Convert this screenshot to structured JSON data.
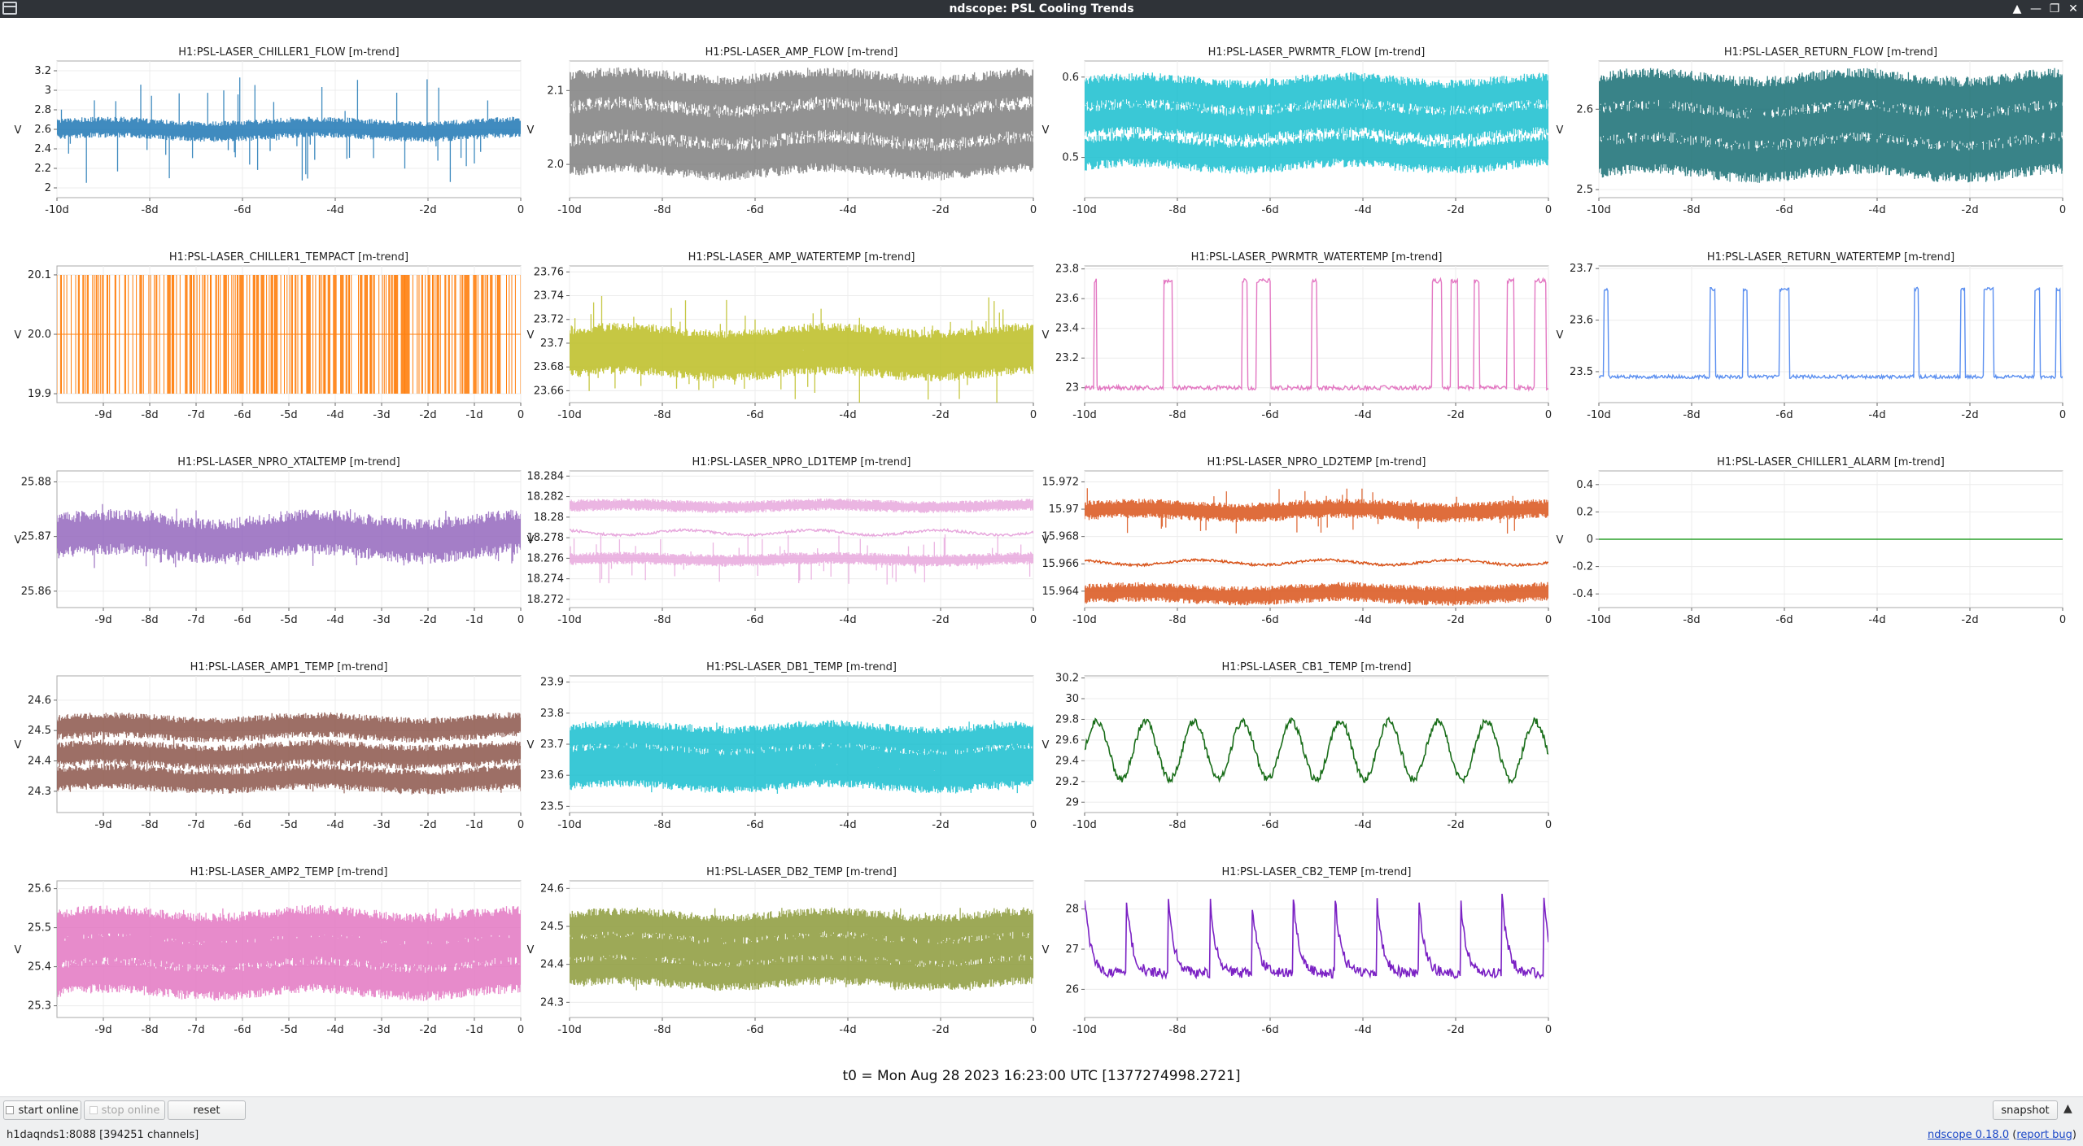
{
  "window": {
    "title": "ndscope: PSL Cooling Trends",
    "controls": [
      "▲",
      "—",
      "❐",
      "✕"
    ]
  },
  "y_axis_label": "V",
  "t0_label": "t0 = Mon Aug 28 2023 16:23:00 UTC [1377274998.2721]",
  "toolbar": {
    "start_online": "start online",
    "stop_online": "stop online",
    "reset": "reset",
    "snapshot": "snapshot",
    "expand_icon": "triangle-up"
  },
  "status": {
    "connection": "h1daqnds1:8088  [394251 channels]",
    "version_link": "ndscope 0.18.0",
    "report_bug_link": "report bug",
    "open_paren": " (",
    "close_paren": ")"
  },
  "chart_data": [
    {
      "type": "line",
      "title": "H1:PSL-LASER_CHILLER1_FLOW [m-trend]",
      "color": "#1f77b4",
      "ylim": [
        1.9,
        3.3
      ],
      "yticks": [
        "3.2",
        "3",
        "2.8",
        "2.6",
        "2.4",
        "2.2",
        "2"
      ],
      "ytick_values": [
        3.2,
        3.0,
        2.8,
        2.6,
        2.4,
        2.2,
        2.0
      ],
      "xlim": [
        -10,
        0
      ],
      "xticks": [
        "-10d",
        "-8d",
        "-6d",
        "-4d",
        "-2d",
        "0"
      ],
      "xtick_values": [
        -10,
        -8,
        -6,
        -4,
        -2,
        0
      ],
      "series": [
        {
          "kind": "band",
          "values": [
            2.6
          ],
          "spread": 0.09,
          "spikes": 0.55
        }
      ]
    },
    {
      "type": "line",
      "title": "H1:PSL-LASER_AMP_FLOW [m-trend]",
      "color": "#7f7f7f",
      "ylim": [
        1.955,
        2.14
      ],
      "yticks": [
        "2.1",
        "2.0"
      ],
      "ytick_values": [
        2.1,
        2.0
      ],
      "xlim": [
        -10,
        0
      ],
      "xticks": [
        "-10d",
        "-8d",
        "-6d",
        "-4d",
        "-2d",
        "0"
      ],
      "xtick_values": [
        -10,
        -8,
        -6,
        -4,
        -2,
        0
      ],
      "series": [
        {
          "kind": "band",
          "values": [
            2.1,
            2.055,
            2.01
          ],
          "spread": 0.022,
          "spikes": 0.02
        }
      ]
    },
    {
      "type": "line",
      "title": "H1:PSL-LASER_PWRMTR_FLOW [m-trend]",
      "color": "#17becf",
      "ylim": [
        0.45,
        0.62
      ],
      "yticks": [
        "0.6",
        "0.5"
      ],
      "ytick_values": [
        0.6,
        0.5
      ],
      "xlim": [
        -10,
        0
      ],
      "xticks": [
        "-10d",
        "-8d",
        "-6d",
        "-4d",
        "-2d",
        "0"
      ],
      "xtick_values": [
        -10,
        -8,
        -6,
        -4,
        -2,
        0
      ],
      "series": [
        {
          "kind": "band",
          "values": [
            0.58,
            0.545,
            0.505
          ],
          "spread": 0.018,
          "spikes": 0.01
        }
      ]
    },
    {
      "type": "line",
      "title": "H1:PSL-LASER_RETURN_FLOW [m-trend]",
      "color": "#166d73",
      "ylim": [
        2.49,
        2.66
      ],
      "yticks": [
        "2.6",
        "2.5"
      ],
      "ytick_values": [
        2.6,
        2.5
      ],
      "xlim": [
        -10,
        0
      ],
      "xticks": [
        "-10d",
        "-8d",
        "-6d",
        "-4d",
        "-2d",
        "0"
      ],
      "xtick_values": [
        -10,
        -8,
        -6,
        -4,
        -2,
        0
      ],
      "series": [
        {
          "kind": "band",
          "values": [
            2.62,
            2.58,
            2.54
          ],
          "spread": 0.022,
          "spikes": 0.01
        }
      ]
    },
    {
      "type": "line",
      "title": "H1:PSL-LASER_CHILLER1_TEMPACT [m-trend]",
      "color": "#ff7f0e",
      "ylim": [
        19.885,
        20.115
      ],
      "yticks": [
        "20.1",
        "20.0",
        "19.9"
      ],
      "ytick_values": [
        20.1,
        20.0,
        19.9
      ],
      "xlim": [
        -10,
        0
      ],
      "xticks": [
        "-9d",
        "-8d",
        "-7d",
        "-6d",
        "-5d",
        "-4d",
        "-3d",
        "-2d",
        "-1d",
        "0"
      ],
      "xtick_values": [
        -9,
        -8,
        -7,
        -6,
        -5,
        -4,
        -3,
        -2,
        -1,
        0
      ],
      "series": [
        {
          "kind": "toggle",
          "values": [
            20.0
          ],
          "levels": [
            20.1,
            19.9
          ]
        }
      ]
    },
    {
      "type": "line",
      "title": "H1:PSL-LASER_AMP_WATERTEMP [m-trend]",
      "color": "#bcbd22",
      "ylim": [
        23.65,
        23.765
      ],
      "yticks": [
        "23.76",
        "23.74",
        "23.72",
        "23.7",
        "23.68",
        "23.66"
      ],
      "ytick_values": [
        23.76,
        23.74,
        23.72,
        23.7,
        23.68,
        23.66
      ],
      "xlim": [
        -10,
        0
      ],
      "xticks": [
        "-10d",
        "-8d",
        "-6d",
        "-4d",
        "-2d",
        "0"
      ],
      "xtick_values": [
        -10,
        -8,
        -6,
        -4,
        -2,
        0
      ],
      "series": [
        {
          "kind": "band",
          "values": [
            23.7,
            23.685
          ],
          "spread": 0.012,
          "spikes": 0.04
        }
      ]
    },
    {
      "type": "line",
      "title": "H1:PSL-LASER_PWRMTR_WATERTEMP [m-trend]",
      "color": "#e377c2",
      "ylim": [
        22.9,
        23.82
      ],
      "yticks": [
        "23.8",
        "23.6",
        "23.4",
        "23.2",
        "23"
      ],
      "ytick_values": [
        23.8,
        23.6,
        23.4,
        23.2,
        23.0
      ],
      "xlim": [
        -10,
        0
      ],
      "xticks": [
        "-10d",
        "-8d",
        "-6d",
        "-4d",
        "-2d",
        "0"
      ],
      "xtick_values": [
        -10,
        -8,
        -6,
        -4,
        -2,
        0
      ],
      "series": [
        {
          "kind": "steps",
          "base": 23.0,
          "high": 23.72,
          "pulses": [
            [
              -9.8,
              -9.75
            ],
            [
              -8.3,
              -8.1
            ],
            [
              -6.6,
              -6.5
            ],
            [
              -6.3,
              -6.0
            ],
            [
              -5.1,
              -5.0
            ],
            [
              -2.5,
              -2.3
            ],
            [
              -2.1,
              -1.95
            ],
            [
              -1.6,
              -1.5
            ],
            [
              -0.9,
              -0.75
            ],
            [
              -0.3,
              -0.05
            ]
          ]
        }
      ]
    },
    {
      "type": "line",
      "title": "H1:PSL-LASER_RETURN_WATERTEMP [m-trend]",
      "color": "#5b8ff0",
      "ylim": [
        23.44,
        23.705
      ],
      "yticks": [
        "23.7",
        "23.6",
        "23.5"
      ],
      "ytick_values": [
        23.7,
        23.6,
        23.5
      ],
      "xlim": [
        -10,
        0
      ],
      "xticks": [
        "-10d",
        "-8d",
        "-6d",
        "-4d",
        "-2d",
        "0"
      ],
      "xtick_values": [
        -10,
        -8,
        -6,
        -4,
        -2,
        0
      ],
      "series": [
        {
          "kind": "steps",
          "base": 23.49,
          "high": 23.66,
          "pulses": [
            [
              -9.9,
              -9.8
            ],
            [
              -7.6,
              -7.5
            ],
            [
              -6.9,
              -6.8
            ],
            [
              -6.1,
              -5.9
            ],
            [
              -3.2,
              -3.1
            ],
            [
              -2.2,
              -2.1
            ],
            [
              -1.7,
              -1.5
            ],
            [
              -0.6,
              -0.5
            ],
            [
              -0.15,
              -0.05
            ]
          ]
        }
      ]
    },
    {
      "type": "line",
      "title": "H1:PSL-LASER_NPRO_XTALTEMP [m-trend]",
      "color": "#9467bd",
      "ylim": [
        25.857,
        25.882
      ],
      "yticks": [
        "25.88",
        "25.87",
        "25.86"
      ],
      "ytick_values": [
        25.88,
        25.87,
        25.86
      ],
      "xlim": [
        -10,
        0
      ],
      "xticks": [
        "-9d",
        "-8d",
        "-7d",
        "-6d",
        "-5d",
        "-4d",
        "-3d",
        "-2d",
        "-1d",
        "0"
      ],
      "xtick_values": [
        -9,
        -8,
        -7,
        -6,
        -5,
        -4,
        -3,
        -2,
        -1,
        0
      ],
      "series": [
        {
          "kind": "band",
          "values": [
            25.87
          ],
          "spread": 0.0035,
          "spikes": 0.006
        }
      ]
    },
    {
      "type": "line",
      "title": "H1:PSL-LASER_NPRO_LD1TEMP [m-trend]",
      "color": "#e7a8dd",
      "ylim": [
        18.2712,
        18.2845
      ],
      "yticks": [
        "18.284",
        "18.282",
        "18.28",
        "18.278",
        "18.276",
        "18.274",
        "18.272"
      ],
      "ytick_values": [
        18.284,
        18.282,
        18.28,
        18.278,
        18.276,
        18.274,
        18.272
      ],
      "xlim": [
        -10,
        0
      ],
      "xticks": [
        "-10d",
        "-8d",
        "-6d",
        "-4d",
        "-2d",
        "0"
      ],
      "xtick_values": [
        -10,
        -8,
        -6,
        -4,
        -2,
        0
      ],
      "series": [
        {
          "kind": "band",
          "values": [
            18.2811
          ],
          "spread": 0.0005,
          "spikes": 0
        },
        {
          "kind": "wave",
          "values": [
            18.2785
          ],
          "amp": 0.0004
        },
        {
          "kind": "band",
          "values": [
            18.2759
          ],
          "spread": 0.0005,
          "spikes": 0.0025
        }
      ]
    },
    {
      "type": "line",
      "title": "H1:PSL-LASER_NPRO_LD2TEMP [m-trend]",
      "color": "#d9541a",
      "ylim": [
        15.9628,
        15.9728
      ],
      "yticks": [
        "15.972",
        "15.97",
        "15.968",
        "15.966",
        "15.964"
      ],
      "ytick_values": [
        15.972,
        15.97,
        15.968,
        15.966,
        15.964
      ],
      "xlim": [
        -10,
        0
      ],
      "xticks": [
        "-10d",
        "-8d",
        "-6d",
        "-4d",
        "-2d",
        "0"
      ],
      "xtick_values": [
        -10,
        -8,
        -6,
        -4,
        -2,
        0
      ],
      "series": [
        {
          "kind": "band",
          "values": [
            15.9699
          ],
          "spread": 0.0006,
          "spikes": 0.0018
        },
        {
          "kind": "wave",
          "values": [
            15.9661
          ],
          "amp": 0.0003
        },
        {
          "kind": "band",
          "values": [
            15.9638
          ],
          "spread": 0.0006,
          "spikes": 0
        }
      ]
    },
    {
      "type": "line",
      "title": "H1:PSL-LASER_CHILLER1_ALARM [m-trend]",
      "color": "#2ca02c",
      "ylim": [
        -0.5,
        0.5
      ],
      "yticks": [
        "0.4",
        "0.2",
        "0",
        "-0.2",
        "-0.4"
      ],
      "ytick_values": [
        0.4,
        0.2,
        0,
        -0.2,
        -0.4
      ],
      "xlim": [
        -10,
        0
      ],
      "xticks": [
        "-10d",
        "-8d",
        "-6d",
        "-4d",
        "-2d",
        "0"
      ],
      "xtick_values": [
        -10,
        -8,
        -6,
        -4,
        -2,
        0
      ],
      "series": [
        {
          "kind": "flat",
          "values": [
            0
          ]
        }
      ]
    },
    {
      "type": "line",
      "title": "H1:PSL-LASER_AMP1_TEMP [m-trend]",
      "color": "#8c564b",
      "ylim": [
        24.23,
        24.68
      ],
      "yticks": [
        "24.6",
        "24.5",
        "24.4",
        "24.3"
      ],
      "ytick_values": [
        24.6,
        24.5,
        24.4,
        24.3
      ],
      "xlim": [
        -10,
        0
      ],
      "xticks": [
        "-9d",
        "-8d",
        "-7d",
        "-6d",
        "-5d",
        "-4d",
        "-3d",
        "-2d",
        "-1d",
        "0"
      ],
      "xtick_values": [
        -9,
        -8,
        -7,
        -6,
        -5,
        -4,
        -3,
        -2,
        -1,
        0
      ],
      "series": [
        {
          "kind": "band",
          "values": [
            24.51,
            24.42,
            24.34
          ],
          "spread": 0.035,
          "spikes": 0.05
        }
      ]
    },
    {
      "type": "line",
      "title": "H1:PSL-LASER_DB1_TEMP [m-trend]",
      "color": "#17becf",
      "ylim": [
        23.48,
        23.92
      ],
      "yticks": [
        "23.9",
        "23.8",
        "23.7",
        "23.6",
        "23.5"
      ],
      "ytick_values": [
        23.9,
        23.8,
        23.7,
        23.6,
        23.5
      ],
      "xlim": [
        -10,
        0
      ],
      "xticks": [
        "-10d",
        "-8d",
        "-6d",
        "-4d",
        "-2d",
        "0"
      ],
      "xtick_values": [
        -10,
        -8,
        -6,
        -4,
        -2,
        0
      ],
      "series": [
        {
          "kind": "band",
          "values": [
            23.72,
            23.65,
            23.6
          ],
          "spread": 0.04,
          "spikes": 0.06
        }
      ]
    },
    {
      "type": "line",
      "title": "H1:PSL-LASER_CB1_TEMP [m-trend]",
      "color": "#1a6e1a",
      "ylim": [
        28.9,
        30.22
      ],
      "yticks": [
        "30.2",
        "30",
        "29.8",
        "29.6",
        "29.4",
        "29.2",
        "29"
      ],
      "ytick_values": [
        30.2,
        30.0,
        29.8,
        29.6,
        29.4,
        29.2,
        29.0
      ],
      "xlim": [
        -10,
        0
      ],
      "xticks": [
        "-10d",
        "-8d",
        "-6d",
        "-4d",
        "-2d",
        "0"
      ],
      "xtick_values": [
        -10,
        -8,
        -6,
        -4,
        -2,
        0
      ],
      "series": [
        {
          "kind": "osc",
          "values": [
            29.5
          ],
          "amp": 0.28,
          "period": 1.05
        }
      ]
    },
    {
      "type": "line",
      "title": "H1:PSL-LASER_AMP2_TEMP [m-trend]",
      "color": "#e377c2",
      "ylim": [
        25.27,
        25.62
      ],
      "yticks": [
        "25.6",
        "25.5",
        "25.4",
        "25.3"
      ],
      "ytick_values": [
        25.6,
        25.5,
        25.4,
        25.3
      ],
      "xlim": [
        -10,
        0
      ],
      "xticks": [
        "-9d",
        "-8d",
        "-7d",
        "-6d",
        "-5d",
        "-4d",
        "-3d",
        "-2d",
        "-1d",
        "0"
      ],
      "xtick_values": [
        -9,
        -8,
        -7,
        -6,
        -5,
        -4,
        -3,
        -2,
        -1,
        0
      ],
      "series": [
        {
          "kind": "band",
          "values": [
            25.5,
            25.44,
            25.37
          ],
          "spread": 0.04,
          "spikes": 0.05
        }
      ]
    },
    {
      "type": "line",
      "title": "H1:PSL-LASER_DB2_TEMP [m-trend]",
      "color": "#8c9a3a",
      "ylim": [
        24.26,
        24.62
      ],
      "yticks": [
        "24.6",
        "24.5",
        "24.4",
        "24.3"
      ],
      "ytick_values": [
        24.6,
        24.5,
        24.4,
        24.3
      ],
      "xlim": [
        -10,
        0
      ],
      "xticks": [
        "-10d",
        "-8d",
        "-6d",
        "-4d",
        "-2d",
        "0"
      ],
      "xtick_values": [
        -10,
        -8,
        -6,
        -4,
        -2,
        0
      ],
      "series": [
        {
          "kind": "band",
          "values": [
            24.5,
            24.44,
            24.38
          ],
          "spread": 0.035,
          "spikes": 0.05
        }
      ]
    },
    {
      "type": "line",
      "title": "H1:PSL-LASER_CB2_TEMP [m-trend]",
      "color": "#7b22c4",
      "ylim": [
        25.3,
        28.7
      ],
      "yticks": [
        "28",
        "27",
        "26"
      ],
      "ytick_values": [
        28,
        27,
        26
      ],
      "xlim": [
        -10,
        0
      ],
      "xticks": [
        "-10d",
        "-8d",
        "-6d",
        "-4d",
        "-2d",
        "0"
      ],
      "xtick_values": [
        -10,
        -8,
        -6,
        -4,
        -2,
        0
      ],
      "series": [
        {
          "kind": "spiky",
          "values": [
            26.4
          ],
          "amp": 1.9,
          "period": 0.9
        }
      ]
    }
  ]
}
